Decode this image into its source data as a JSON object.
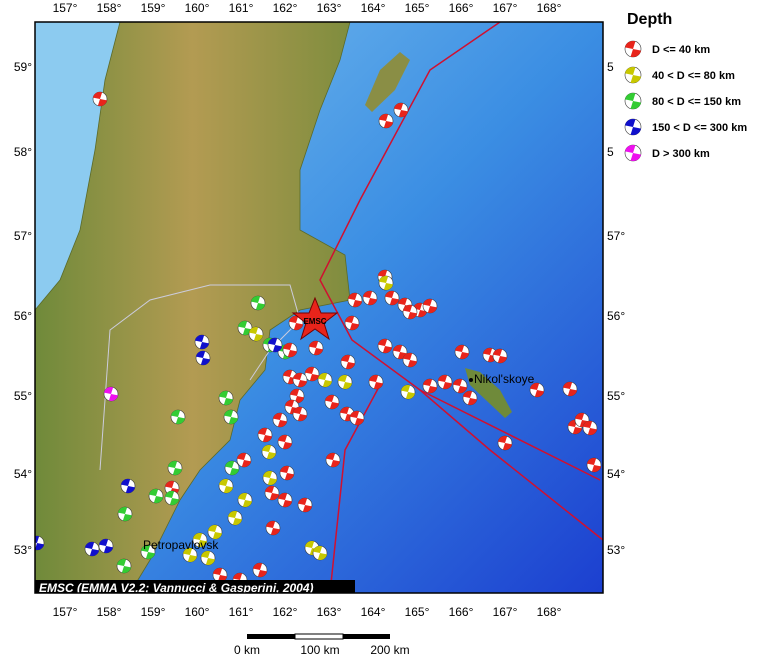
{
  "map": {
    "longitude_labels": [
      "157°",
      "158°",
      "159°",
      "160°",
      "161°",
      "162°",
      "163°",
      "164°",
      "165°",
      "166°",
      "167°",
      "168°"
    ],
    "latitude_labels": [
      "59°",
      "58°",
      "57°",
      "56°",
      "55°",
      "54°",
      "53°"
    ],
    "legend": {
      "title": "Depth",
      "entries": [
        "D <= 40 km",
        "40 < D <= 80 km",
        "80 < D <= 150 km",
        "150 < D <= 300 km",
        "D > 300 km"
      ]
    },
    "places": [
      "Nikol'skoye",
      "Petropavlovsk"
    ],
    "marker_label": "EMSC",
    "credit": "EMSC (EMMA V2.2; Vannucci & Gasperini, 2004)",
    "scale_labels": [
      "0 km",
      "100 km",
      "200 km"
    ]
  }
}
